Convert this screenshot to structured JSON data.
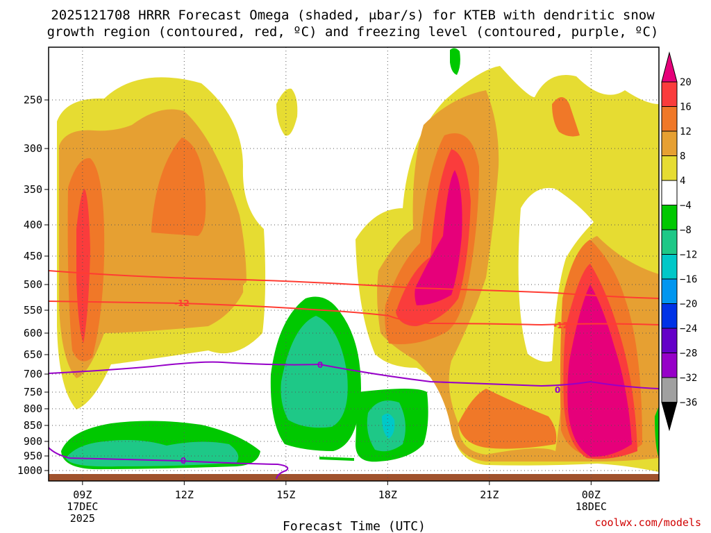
{
  "chart_data": {
    "type": "heatmap",
    "title_line1": "2025121708 HRRR Forecast Omega (shaded, μbar/s) for KTEB with dendritic snow",
    "title_line2": "growth region (contoured, red, ºC) and freezing level (contoured, purple, ºC)",
    "xlabel": "Forecast Time (UTC)",
    "credit": "coolwx.com/models",
    "x_ticks": [
      {
        "hour": 9,
        "label": "09Z",
        "sub1": "17DEC",
        "sub2": "2025"
      },
      {
        "hour": 12,
        "label": "12Z",
        "sub1": "",
        "sub2": ""
      },
      {
        "hour": 15,
        "label": "15Z",
        "sub1": "",
        "sub2": ""
      },
      {
        "hour": 18,
        "label": "18Z",
        "sub1": "",
        "sub2": ""
      },
      {
        "hour": 21,
        "label": "21Z",
        "sub1": "",
        "sub2": ""
      },
      {
        "hour": 24,
        "label": "00Z",
        "sub1": "18DEC",
        "sub2": ""
      }
    ],
    "x_range_hours": [
      8,
      26
    ],
    "y_ticks": [
      "250",
      "300",
      "350",
      "400",
      "450",
      "500",
      "550",
      "600",
      "650",
      "700",
      "750",
      "800",
      "850",
      "900",
      "950",
      "1000"
    ],
    "y_range_hpa": [
      200,
      1025
    ],
    "colorbar": {
      "labels": [
        "20",
        "16",
        "12",
        "8",
        "4",
        "−4",
        "−8",
        "−12",
        "−16",
        "−20",
        "−24",
        "−28",
        "−32",
        "−36"
      ],
      "colors": [
        "#fa3c3c",
        "#f07828",
        "#e6a032",
        "#e6dc32",
        "#ffffff",
        "#00c800",
        "#1ec887",
        "#00c8c8",
        "#0096f0",
        "#0032e6",
        "#6400c8",
        "#9600c8",
        "#a0a0a0"
      ],
      "top_color": "#e6007a",
      "bottom_color": "#000000"
    },
    "contour_labels": {
      "dgz_upper": "-12",
      "dgz_lower": "-12",
      "freezing_a": "0",
      "freezing_b": "0",
      "freezing_c": "0"
    },
    "contour_colors": {
      "dgz": "#ff3c32",
      "freezing": "#9600c8"
    },
    "ground_color": "#a0522d"
  }
}
